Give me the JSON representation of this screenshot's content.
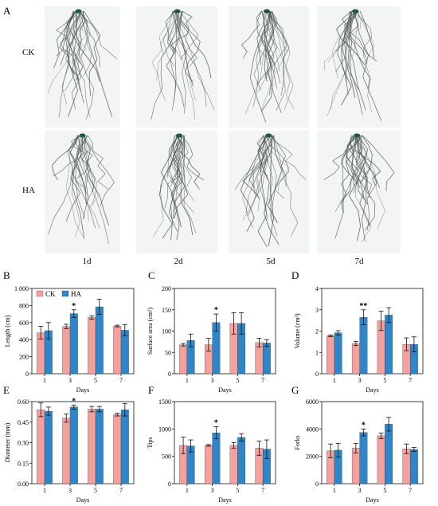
{
  "photo_panel": {
    "label": "A",
    "row_labels": [
      "CK",
      "HA"
    ],
    "column_labels": [
      "1d",
      "2d",
      "5d",
      "7d"
    ]
  },
  "colors": {
    "CK": "#f4a09c",
    "HA": "#2e86c8",
    "root": "#46524f",
    "root_crown": "#1f5648",
    "photo_bg": "#f3f5f4"
  },
  "legend": {
    "ck": "CK",
    "ha": "HA"
  },
  "chart_data": [
    {
      "id": "B",
      "label": "B",
      "type": "bar",
      "categories": [
        "1",
        "3",
        "5",
        "7"
      ],
      "xlabel": "Days",
      "ylabel": "Length (cm)",
      "ylim": [
        0,
        1000
      ],
      "yticks": [
        "0",
        "200",
        "400",
        "600",
        "800",
        "1 000"
      ],
      "series": [
        {
          "name": "CK",
          "values": [
            480,
            555,
            660,
            560
          ],
          "errors": [
            75,
            25,
            20,
            10
          ]
        },
        {
          "name": "HA",
          "values": [
            505,
            705,
            785,
            510
          ],
          "errors": [
            95,
            45,
            90,
            65
          ]
        }
      ],
      "significance": [
        "",
        "*",
        "",
        ""
      ],
      "legend": "top-left"
    },
    {
      "id": "C",
      "label": "C",
      "type": "bar",
      "categories": [
        "1",
        "3",
        "5",
        "7"
      ],
      "xlabel": "Days",
      "ylabel": "Surface area (cm²)",
      "ylim": [
        0,
        200
      ],
      "yticks": [
        "0",
        "50",
        "100",
        "150",
        "200"
      ],
      "series": [
        {
          "name": "CK",
          "values": [
            68,
            68,
            118,
            73
          ],
          "errors": [
            3,
            15,
            25,
            10
          ]
        },
        {
          "name": "HA",
          "values": [
            78,
            120,
            118,
            72
          ],
          "errors": [
            15,
            20,
            25,
            8
          ]
        }
      ],
      "significance": [
        "",
        "*",
        "",
        ""
      ]
    },
    {
      "id": "D",
      "label": "D",
      "type": "bar",
      "categories": [
        "1",
        "3",
        "5",
        "7"
      ],
      "xlabel": "Days",
      "ylabel": "Volume (cm³)",
      "ylim": [
        0,
        4
      ],
      "yticks": [
        "0",
        "1",
        "2",
        "3",
        "4"
      ],
      "series": [
        {
          "name": "CK",
          "values": [
            1.78,
            1.42,
            2.48,
            1.38
          ],
          "errors": [
            0.04,
            0.1,
            0.45,
            0.3
          ]
        },
        {
          "name": "HA",
          "values": [
            1.92,
            2.65,
            2.75,
            1.38
          ],
          "errors": [
            0.1,
            0.35,
            0.35,
            0.35
          ]
        }
      ],
      "significance": [
        "",
        "**",
        "",
        ""
      ]
    },
    {
      "id": "E",
      "label": "E",
      "type": "bar",
      "categories": [
        "1",
        "3",
        "5",
        "7"
      ],
      "xlabel": "Days",
      "ylabel": "Diameter (mm)",
      "ylim": [
        0,
        0.6
      ],
      "yticks": [
        "0.00",
        "0.15",
        "0.30",
        "0.45",
        "0.60"
      ],
      "series": [
        {
          "name": "CK",
          "values": [
            0.54,
            0.48,
            0.545,
            0.505
          ],
          "errors": [
            0.05,
            0.03,
            0.02,
            0.01
          ]
        },
        {
          "name": "HA",
          "values": [
            0.53,
            0.56,
            0.545,
            0.54
          ],
          "errors": [
            0.03,
            0.015,
            0.02,
            0.045
          ]
        }
      ],
      "significance": [
        "",
        "*",
        "",
        ""
      ]
    },
    {
      "id": "F",
      "label": "F",
      "type": "bar",
      "categories": [
        "1",
        "3",
        "5",
        "7"
      ],
      "xlabel": "Days",
      "ylabel": "Tips",
      "ylim": [
        0,
        1500
      ],
      "yticks": [
        "0",
        "500",
        "1000",
        "1500"
      ],
      "series": [
        {
          "name": "CK",
          "values": [
            700,
            700,
            700,
            650
          ],
          "errors": [
            150,
            15,
            50,
            130
          ]
        },
        {
          "name": "HA",
          "values": [
            690,
            930,
            845,
            630
          ],
          "errors": [
            110,
            110,
            70,
            170
          ]
        }
      ],
      "significance": [
        "",
        "*",
        "",
        ""
      ]
    },
    {
      "id": "G",
      "label": "G",
      "type": "bar",
      "categories": [
        "1",
        "3",
        "5",
        "7"
      ],
      "xlabel": "Days",
      "ylabel": "Forks",
      "ylim": [
        0,
        6000
      ],
      "yticks": [
        "0",
        "2000",
        "4000",
        "6000"
      ],
      "series": [
        {
          "name": "CK",
          "values": [
            2400,
            2600,
            3500,
            2550
          ],
          "errors": [
            500,
            350,
            200,
            350
          ]
        },
        {
          "name": "HA",
          "values": [
            2450,
            3750,
            4350,
            2500
          ],
          "errors": [
            500,
            250,
            500,
            150
          ]
        }
      ],
      "significance": [
        "",
        "*",
        "",
        ""
      ]
    }
  ]
}
